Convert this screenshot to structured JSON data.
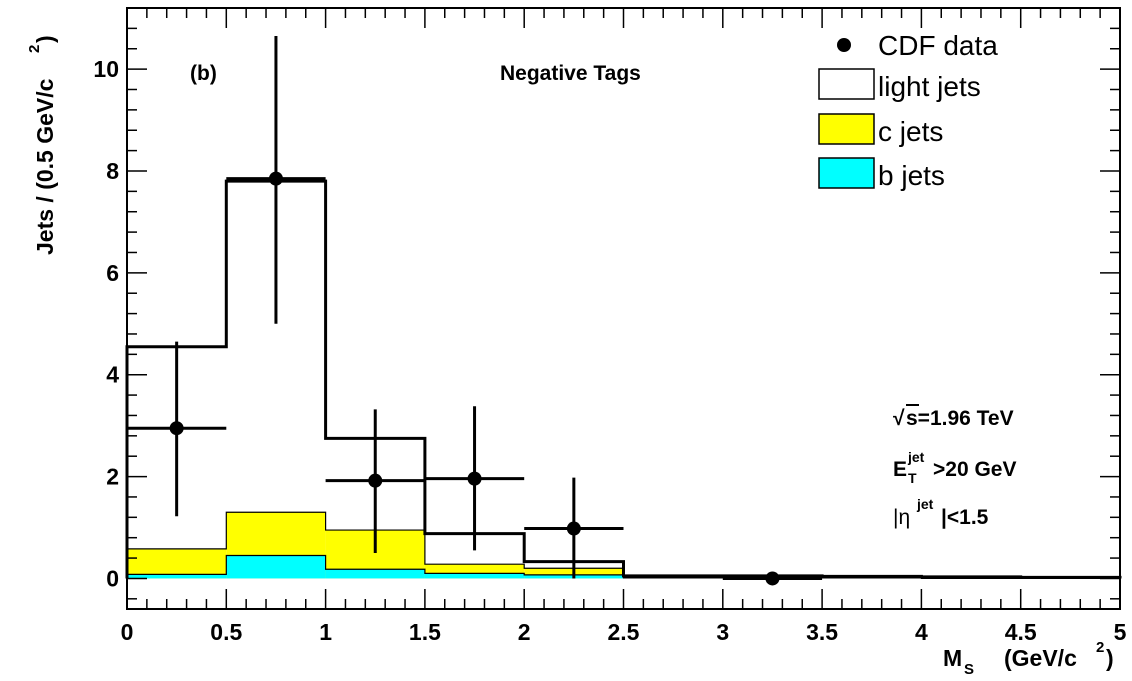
{
  "chart_data": {
    "type": "bar",
    "subtype": "stacked-histogram-with-data-points",
    "panel_label": "(b)",
    "title": "Negative Tags",
    "xlabel": {
      "main": "M",
      "sub": "S",
      "units_prefix": "(GeV/c",
      "units_sup": "2",
      "units_suffix": ")"
    },
    "ylabel": {
      "main": "Jets / (0.5 GeV/c",
      "sup": "2",
      "suffix": ")"
    },
    "xlim": [
      0,
      5
    ],
    "ylim": [
      -0.6,
      11.2
    ],
    "x_ticks": [
      "0",
      "0.5",
      "1",
      "1.5",
      "2",
      "2.5",
      "3",
      "3.5",
      "4",
      "4.5",
      "5"
    ],
    "x_tick_values": [
      0,
      0.5,
      1,
      1.5,
      2,
      2.5,
      3,
      3.5,
      4,
      4.5,
      5
    ],
    "y_ticks": [
      "0",
      "2",
      "4",
      "6",
      "8",
      "10"
    ],
    "y_tick_values": [
      0,
      2,
      4,
      6,
      8,
      10
    ],
    "bin_edges": [
      0,
      0.5,
      1,
      1.5,
      2,
      2.5,
      3,
      3.5,
      4,
      4.5,
      5
    ],
    "series": [
      {
        "name": "light jets",
        "kind": "hist-total",
        "color": "#ffffff",
        "values": [
          4.55,
          7.8,
          2.75,
          0.88,
          0.33,
          0.05,
          0.05,
          0.04,
          0.03,
          0.02
        ]
      },
      {
        "name": "c jets",
        "kind": "hist-stack",
        "color": "#ffff00",
        "values": [
          0.58,
          1.3,
          0.95,
          0.28,
          0.2,
          0.03,
          0.02,
          0.02,
          0.01,
          0.01
        ]
      },
      {
        "name": "b jets",
        "kind": "hist-stack",
        "color": "#00ffff",
        "values": [
          0.08,
          0.45,
          0.18,
          0.1,
          0.07,
          0.01,
          0.01,
          0.01,
          0.0,
          0.0
        ]
      },
      {
        "name": "CDF data",
        "kind": "points-with-errors",
        "color": "#000000",
        "points": [
          {
            "x": 0.25,
            "y": 2.95,
            "ylow": 1.22,
            "yhigh": 4.65
          },
          {
            "x": 0.75,
            "y": 7.85,
            "ylow": 5.0,
            "yhigh": 10.65
          },
          {
            "x": 1.25,
            "y": 1.92,
            "ylow": 0.5,
            "yhigh": 3.32
          },
          {
            "x": 1.75,
            "y": 1.96,
            "ylow": 0.55,
            "yhigh": 3.38
          },
          {
            "x": 2.25,
            "y": 0.98,
            "ylow": 0.0,
            "yhigh": 1.98
          },
          {
            "x": 3.25,
            "y": 0.0,
            "ylow": 0.0,
            "yhigh": 0.0
          }
        ]
      }
    ],
    "legend": {
      "placement": "top-right",
      "entries": [
        {
          "label": "CDF data",
          "marker": "dot"
        },
        {
          "label": "light jets",
          "marker": "box",
          "color": "#ffffff"
        },
        {
          "label": "c jets",
          "marker": "box",
          "color": "#ffff00"
        },
        {
          "label": "b jets",
          "marker": "box",
          "color": "#00ffff"
        }
      ]
    },
    "annotations": {
      "sqrt_s": {
        "root": "√",
        "body": "s=1.96 TeV"
      },
      "et_cut": {
        "main": "E",
        "sub": "T",
        "sup": "jet",
        "rest": ">20 GeV"
      },
      "eta_cut": {
        "open": "|η",
        "sup": "jet",
        "rest": "|<1.5"
      }
    },
    "grid": false
  }
}
